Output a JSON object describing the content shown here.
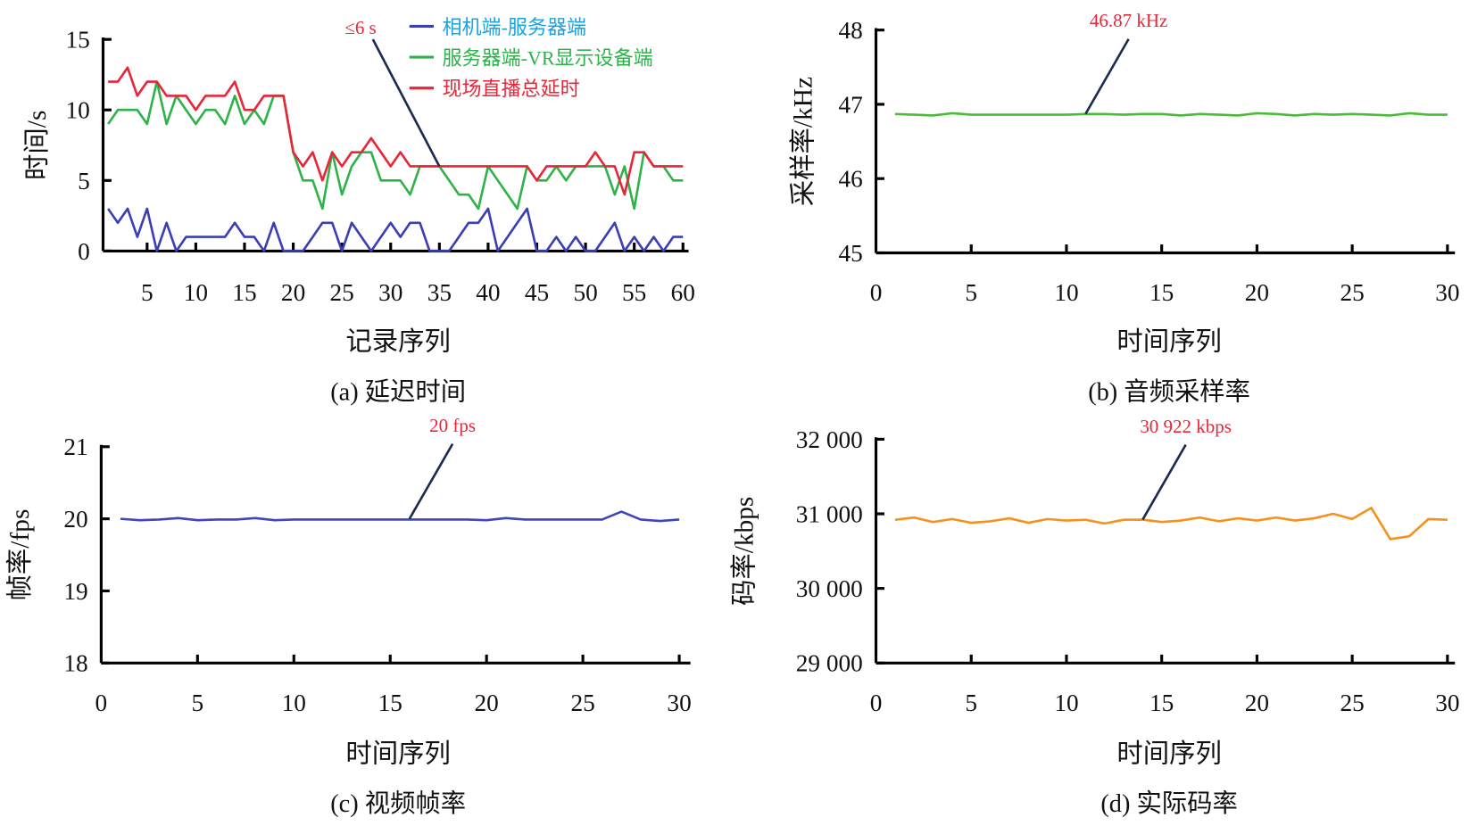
{
  "chart_data": [
    {
      "id": "a",
      "type": "line",
      "caption": "(a) 延迟时间",
      "xlabel": "记录序列",
      "ylabel": "时间/s",
      "xlim": [
        0,
        60
      ],
      "ylim": [
        0,
        15
      ],
      "xticks": [
        5,
        10,
        15,
        20,
        25,
        30,
        35,
        40,
        45,
        50,
        55,
        60
      ],
      "yticks": [
        0,
        5,
        10,
        15
      ],
      "annotation": {
        "text": "≤6 s",
        "x": 35,
        "y": 6
      },
      "series": [
        {
          "name": "相机端-服务器端",
          "color": "#3b3fb5",
          "legend_color": "#1aa3e0",
          "values": [
            3,
            2,
            3,
            1,
            3,
            0,
            2,
            0,
            1,
            1,
            1,
            1,
            1,
            2,
            1,
            1,
            0,
            2,
            0,
            0,
            0,
            1,
            2,
            2,
            0,
            2,
            1,
            0,
            1,
            2,
            1,
            2,
            2,
            0,
            0,
            0,
            1,
            2,
            2,
            3,
            0,
            1,
            2,
            3,
            0,
            0,
            1,
            0,
            1,
            0,
            0,
            1,
            2,
            0,
            1,
            0,
            1,
            0,
            1,
            1
          ]
        },
        {
          "name": "服务器端-VR显示设备端",
          "color": "#2db34a",
          "legend_color": "#2db34a",
          "values": [
            9,
            10,
            10,
            10,
            9,
            12,
            9,
            11,
            10,
            9,
            10,
            10,
            9,
            11,
            9,
            10,
            9,
            11,
            11,
            7,
            5,
            5,
            3,
            7,
            4,
            6,
            7,
            7,
            5,
            5,
            5,
            4,
            6,
            6,
            6,
            5,
            4,
            4,
            3,
            6,
            5,
            4,
            3,
            6,
            5,
            5,
            6,
            5,
            6,
            6,
            6,
            6,
            4,
            6,
            3,
            7,
            6,
            6,
            5,
            5
          ]
        },
        {
          "name": "现场直播总延时",
          "color": "#e8263a",
          "legend_color": "#e8263a",
          "values": [
            12,
            12,
            13,
            11,
            12,
            12,
            11,
            11,
            11,
            10,
            11,
            11,
            11,
            12,
            10,
            10,
            11,
            11,
            11,
            7,
            6,
            7,
            5,
            7,
            6,
            7,
            7,
            8,
            7,
            6,
            7,
            6,
            6,
            6,
            6,
            6,
            6,
            6,
            6,
            6,
            6,
            6,
            6,
            6,
            5,
            6,
            6,
            6,
            6,
            6,
            7,
            6,
            6,
            4,
            7,
            7,
            6,
            6,
            6,
            6
          ]
        }
      ]
    },
    {
      "id": "b",
      "type": "line",
      "caption": "(b) 音频采样率",
      "xlabel": "时间序列",
      "ylabel": "采样率/kHz",
      "xlim": [
        0,
        30
      ],
      "ylim": [
        45,
        48
      ],
      "xticks": [
        0,
        5,
        10,
        15,
        20,
        25,
        30
      ],
      "yticks": [
        45,
        46,
        47,
        48
      ],
      "annotation": {
        "text": "46.87 kHz",
        "x": 11,
        "y": 46.87
      },
      "series": [
        {
          "name": "采样率",
          "color": "#4cbb3a",
          "values": [
            46.87,
            46.86,
            46.85,
            46.88,
            46.86,
            46.86,
            46.86,
            46.86,
            46.86,
            46.86,
            46.87,
            46.87,
            46.86,
            46.87,
            46.87,
            46.85,
            46.87,
            46.86,
            46.85,
            46.88,
            46.87,
            46.85,
            46.87,
            46.86,
            46.87,
            46.86,
            46.85,
            46.88,
            46.86,
            46.86
          ]
        }
      ]
    },
    {
      "id": "c",
      "type": "line",
      "caption": "(c) 视频帧率",
      "xlabel": "时间序列",
      "ylabel": "帧率/fps",
      "xlim": [
        0,
        30
      ],
      "ylim": [
        18,
        21
      ],
      "xticks": [
        0,
        5,
        10,
        15,
        20,
        25,
        30
      ],
      "yticks": [
        18,
        19,
        20,
        21
      ],
      "annotation": {
        "text": "20 fps",
        "x": 16,
        "y": 20
      },
      "series": [
        {
          "name": "帧率",
          "color": "#4046b8",
          "values": [
            20,
            19.98,
            19.99,
            20.01,
            19.98,
            19.99,
            19.99,
            20.01,
            19.98,
            19.99,
            19.99,
            19.99,
            19.99,
            19.99,
            19.99,
            19.99,
            19.99,
            19.99,
            19.99,
            19.98,
            20.01,
            19.99,
            19.99,
            19.99,
            19.99,
            19.99,
            20.1,
            19.99,
            19.97,
            19.99
          ]
        }
      ]
    },
    {
      "id": "d",
      "type": "line",
      "caption": "(d) 实际码率",
      "xlabel": "时间序列",
      "ylabel": "码率/kbps",
      "xlim": [
        0,
        30
      ],
      "ylim": [
        29000,
        32000
      ],
      "xticks": [
        0,
        5,
        10,
        15,
        20,
        25,
        30
      ],
      "yticks": [
        29000,
        30000,
        31000,
        32000
      ],
      "ytick_labels": [
        "29 000",
        "30 000",
        "31 000",
        "32 000"
      ],
      "annotation": {
        "text": "30 922 kbps",
        "x": 14,
        "y": 30922
      },
      "series": [
        {
          "name": "码率",
          "color": "#f5921e",
          "values": [
            30920,
            30950,
            30890,
            30930,
            30880,
            30900,
            30940,
            30880,
            30930,
            30910,
            30920,
            30870,
            30920,
            30922,
            30890,
            30910,
            30950,
            30900,
            30940,
            30910,
            30950,
            30910,
            30940,
            31000,
            30930,
            31080,
            30660,
            30700,
            30930,
            30920
          ]
        }
      ]
    }
  ]
}
